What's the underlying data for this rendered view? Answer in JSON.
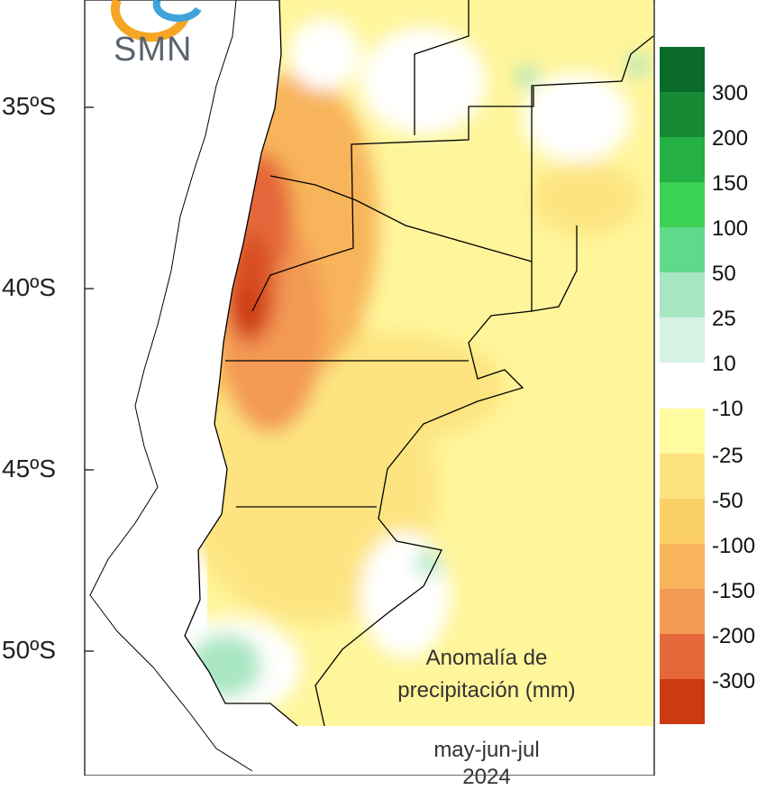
{
  "logo": {
    "text": "SMN"
  },
  "latitude_labels": [
    "35ºS",
    "40ºS",
    "45ºS",
    "50ºS"
  ],
  "legend": {
    "positive": [
      {
        "label": "300",
        "color": "#0b6b2a"
      },
      {
        "label": "200",
        "color": "#168a35"
      },
      {
        "label": "150",
        "color": "#25b043"
      },
      {
        "label": "100",
        "color": "#3bd056"
      },
      {
        "label": "50",
        "color": "#5fd98a"
      },
      {
        "label": "25",
        "color": "#a9e6c2"
      },
      {
        "label": "10",
        "color": "#d6f3e3"
      }
    ],
    "negative": [
      {
        "label": "-10",
        "color": "#fffba0"
      },
      {
        "label": "-25",
        "color": "#fde480"
      },
      {
        "label": "-50",
        "color": "#fbd066"
      },
      {
        "label": "-100",
        "color": "#f8b45a"
      },
      {
        "label": "-150",
        "color": "#f39a55"
      },
      {
        "label": "-200",
        "color": "#e4683a"
      },
      {
        "label": "-300",
        "color": "#cc3a12"
      }
    ]
  },
  "caption": {
    "line1": "Anomalía de",
    "line2": "precipitación (mm)",
    "line3": "may-jun-jul",
    "line4": "2024"
  }
}
